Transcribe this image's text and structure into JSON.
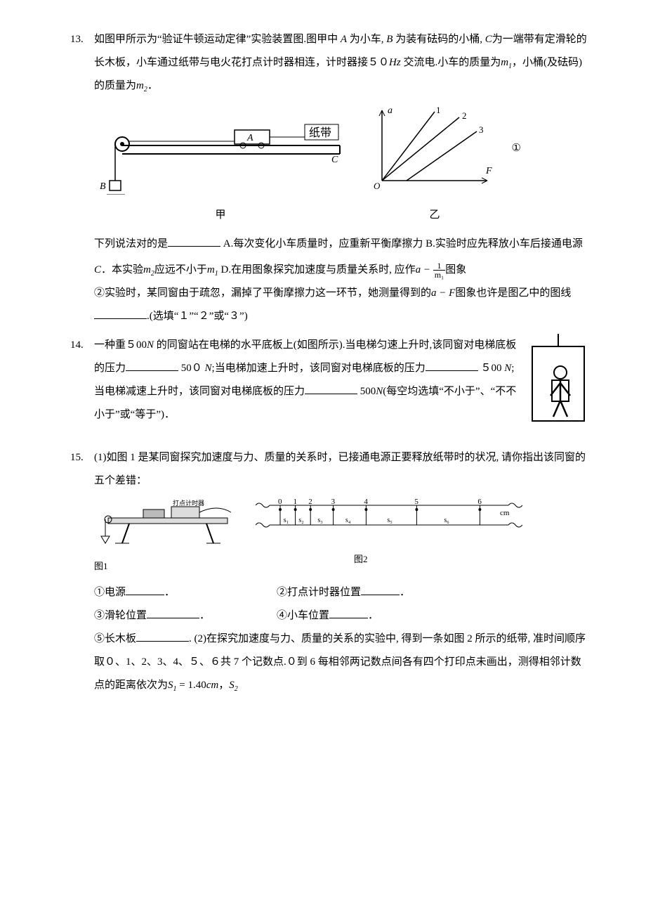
{
  "q13": {
    "num": "13.",
    "p1": "如图甲所示为“验证牛顿运动定律”实验装置图.图甲中 ",
    "p1b": " 为小车, ",
    "p1c": " 为装有砝码的小桶, ",
    "p1d": "为一端带有定滑轮的长木板，小车通过纸带与电火花打点计时器相连，计时器接５０",
    "p1e": " 交流电.小车的质量为",
    "p1f": "，小桶(及砝码)的质量为",
    "p1g": "．",
    "A": "A",
    "B": "B",
    "C": "C",
    "Hz": "Hz",
    "m1": "m",
    "m1sub": "1",
    "m2": "m",
    "m2sub": "2",
    "figCapJia": "甲",
    "figCapYi": "乙",
    "circled1": "①",
    "tape": "纸带",
    "p2a": "下列说法对的是",
    "optA": "A.每次变化小车质量时，应重新平衡摩擦力",
    "optB": "B.实验时应先释放小车后接通电源",
    "optC": "本实验",
    "optC2": "应远不小于",
    "optD": "D.在用图象探究加速度与质量关系时, 应作",
    "aMinus": "a − ",
    "fracNum": "1",
    "fracDen": "m₁",
    "tuxiang": "图象",
    "p3a": "②",
    "p3b": "实验时，某同窗由于疏忽，漏掉了平衡摩擦力这一环节，她测量得到的",
    "aF": "a − F",
    "p3c": "图象也许是图乙中的图线",
    "p3d": ".(选填“１”“２”或“３”)",
    "graph": {
      "axis_color": "#000",
      "line_color": "#000",
      "labels": [
        "1",
        "2",
        "3"
      ],
      "xlabel": "F",
      "ylabel": "a",
      "origin": "O"
    }
  },
  "q14": {
    "num": "14.",
    "p1": "一种重５",
    "w": "00",
    "wN": "N",
    "p2": " 的同窗站在电梯的水平底板上(如图所示).当电梯匀速上升时,该同窗对电梯底板的压力",
    "n1": " 50０ ",
    "N1": "N",
    "p3": ";当电梯加速上升时，该同窗对电梯底板的压力",
    "n2": "  ５00 ",
    "N2": "N",
    "p4": ";当电梯减速上升时，该同窗对电梯底板的压力",
    "n3": " 500",
    "N3": "N",
    "p5": "(每空均选填“不小于”、“不不小于”或“等于”)．"
  },
  "q15": {
    "num": "15.",
    "p1": "(1)如图 1 是某同窗探究加速度与力、质量的关系时，已接通电源正要释放纸带时的状况, 请你指出该同窗的五个差错：",
    "figCap1": "图1",
    "figCap2": "图2",
    "i1": "①电源",
    "i2": "②打点计时器位置",
    "i3": "③滑轮位置",
    "i4": "④小车位置",
    "i5": "⑤长木板",
    "dot": "．",
    "dot2": ".",
    "p2a": "(2)",
    "p2b": "在探究加速度与力、质量的关系的实验中, 得到一条如图 2 所示的纸带, 准时间顺序取０、1、2、3、4、５、６共 7 个记数点.０到 6 每相邻两记数点间各有四个打印点未画出，测得相邻计数点的距离依次为",
    "S1": "S",
    "S1sub": "1",
    "eq": " = 1.40",
    "cm": "cm",
    "comma": "，",
    "S2": "S",
    "S2sub": "2",
    "ruler": {
      "ticks": [
        "0",
        "1",
        "2",
        "3",
        "4",
        "5",
        "6"
      ],
      "unit": "cm",
      "segs": [
        "s₁",
        "s₂",
        "s₃",
        "s₄",
        "s₅",
        "s₆"
      ],
      "positions": [
        0,
        12,
        24,
        42,
        68,
        108,
        158
      ],
      "bg": "#fff",
      "line": "#000"
    }
  }
}
